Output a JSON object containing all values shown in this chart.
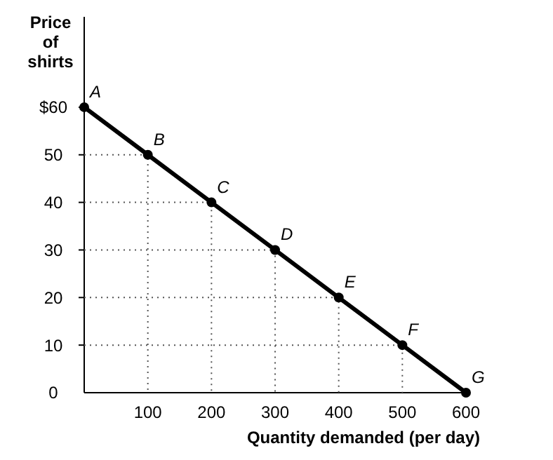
{
  "chart_data": {
    "type": "line",
    "xlabel": "Quantity demanded (per day)",
    "ylabel": "Price of shirts",
    "x": [
      0,
      100,
      200,
      300,
      400,
      500,
      600
    ],
    "series": [
      {
        "color": "#000000",
        "values": [
          60,
          50,
          40,
          30,
          20,
          10,
          0
        ]
      },
      {
        "color": "#555555",
        "x": [
          0,
          100,
          100
        ],
        "values": [
          50,
          50,
          0
        ],
        "line_style": "dotted",
        "marker": "none"
      },
      {
        "color": "#555555",
        "x": [
          0,
          200,
          200
        ],
        "values": [
          40,
          40,
          0
        ],
        "line_style": "dotted",
        "marker": "none"
      },
      {
        "color": "#555555",
        "x": [
          0,
          300,
          300
        ],
        "values": [
          30,
          30,
          0
        ],
        "line_style": "dotted",
        "marker": "none"
      },
      {
        "color": "#555555",
        "x": [
          0,
          400,
          400
        ],
        "values": [
          20,
          20,
          0
        ],
        "line_style": "dotted",
        "marker": "none"
      },
      {
        "color": "#555555",
        "x": [
          0,
          500,
          500
        ],
        "values": [
          10,
          10,
          0
        ],
        "line_style": "dotted",
        "marker": "none"
      }
    ],
    "marker": "circle",
    "line_style": "solid",
    "grid": false,
    "xlim": [
      0,
      600
    ],
    "ylim": [
      0,
      79
    ],
    "xticks": [
      100,
      200,
      300,
      400,
      500,
      600
    ],
    "yticks": [
      0,
      10,
      20,
      30,
      40,
      50,
      {
        "value": 60,
        "label": "$60"
      }
    ],
    "annotations": [
      {
        "text": "A",
        "x": 0,
        "y": 60
      },
      {
        "text": "B",
        "x": 100,
        "y": 50
      },
      {
        "text": "C",
        "x": 200,
        "y": 40
      },
      {
        "text": "D",
        "x": 300,
        "y": 30
      },
      {
        "text": "E",
        "x": 400,
        "y": 20
      },
      {
        "text": "F",
        "x": 500,
        "y": 10
      },
      {
        "text": "G",
        "x": 600,
        "y": 0
      }
    ]
  }
}
